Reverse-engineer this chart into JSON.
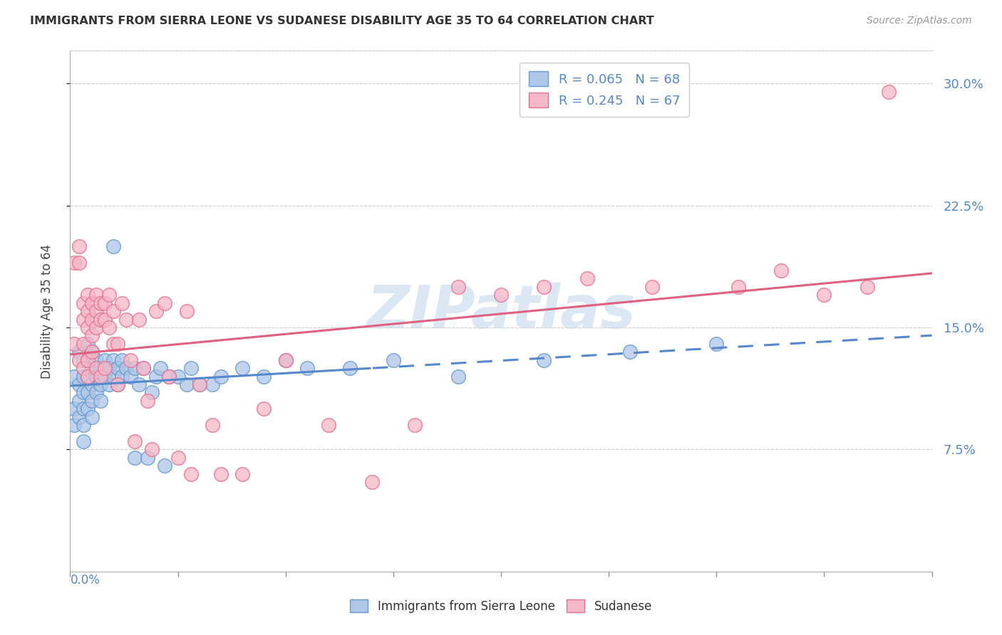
{
  "title": "IMMIGRANTS FROM SIERRA LEONE VS SUDANESE DISABILITY AGE 35 TO 64 CORRELATION CHART",
  "source": "Source: ZipAtlas.com",
  "ylabel": "Disability Age 35 to 64",
  "ylabel_ticks": [
    "7.5%",
    "15.0%",
    "22.5%",
    "30.0%"
  ],
  "ylabel_tick_vals": [
    0.075,
    0.15,
    0.225,
    0.3
  ],
  "xlim": [
    0.0,
    0.2
  ],
  "ylim": [
    0.0,
    0.32
  ],
  "legend_label1": "R = 0.065   N = 68",
  "legend_label2": "R = 0.245   N = 67",
  "legend_label1_bottom": "Immigrants from Sierra Leone",
  "legend_label2_bottom": "Sudanese",
  "sierra_leone_color": "#aec6e8",
  "sudanese_color": "#f4b8c8",
  "sierra_leone_edge": "#6699cc",
  "sudanese_edge": "#e87090",
  "sierra_leone_line": "#5588cc",
  "sudanese_line": "#e06080",
  "watermark": "ZIPatlas",
  "watermark_color": "#c5d8ee",
  "sl_line_solid_end": 0.07,
  "sierra_leone_x": [
    0.001,
    0.001,
    0.001,
    0.002,
    0.002,
    0.002,
    0.002,
    0.003,
    0.003,
    0.003,
    0.003,
    0.003,
    0.003,
    0.004,
    0.004,
    0.004,
    0.004,
    0.004,
    0.005,
    0.005,
    0.005,
    0.005,
    0.005,
    0.006,
    0.006,
    0.006,
    0.007,
    0.007,
    0.007,
    0.008,
    0.008,
    0.009,
    0.009,
    0.01,
    0.01,
    0.01,
    0.011,
    0.011,
    0.012,
    0.012,
    0.013,
    0.014,
    0.015,
    0.015,
    0.016,
    0.017,
    0.018,
    0.019,
    0.02,
    0.021,
    0.022,
    0.023,
    0.025,
    0.027,
    0.028,
    0.03,
    0.033,
    0.035,
    0.04,
    0.045,
    0.05,
    0.055,
    0.065,
    0.075,
    0.09,
    0.11,
    0.13,
    0.15
  ],
  "sierra_leone_y": [
    0.12,
    0.1,
    0.09,
    0.135,
    0.115,
    0.105,
    0.095,
    0.13,
    0.12,
    0.11,
    0.1,
    0.09,
    0.08,
    0.14,
    0.13,
    0.12,
    0.11,
    0.1,
    0.135,
    0.125,
    0.115,
    0.105,
    0.095,
    0.13,
    0.12,
    0.11,
    0.125,
    0.115,
    0.105,
    0.13,
    0.12,
    0.125,
    0.115,
    0.2,
    0.13,
    0.12,
    0.125,
    0.115,
    0.13,
    0.12,
    0.125,
    0.12,
    0.07,
    0.125,
    0.115,
    0.125,
    0.07,
    0.11,
    0.12,
    0.125,
    0.065,
    0.12,
    0.12,
    0.115,
    0.125,
    0.115,
    0.115,
    0.12,
    0.125,
    0.12,
    0.13,
    0.125,
    0.125,
    0.13,
    0.12,
    0.13,
    0.135,
    0.14
  ],
  "sudanese_x": [
    0.001,
    0.001,
    0.002,
    0.002,
    0.002,
    0.003,
    0.003,
    0.003,
    0.003,
    0.004,
    0.004,
    0.004,
    0.004,
    0.004,
    0.005,
    0.005,
    0.005,
    0.005,
    0.006,
    0.006,
    0.006,
    0.006,
    0.007,
    0.007,
    0.007,
    0.008,
    0.008,
    0.008,
    0.009,
    0.009,
    0.01,
    0.01,
    0.011,
    0.011,
    0.012,
    0.013,
    0.014,
    0.015,
    0.016,
    0.017,
    0.018,
    0.019,
    0.02,
    0.022,
    0.023,
    0.025,
    0.027,
    0.028,
    0.03,
    0.033,
    0.035,
    0.04,
    0.045,
    0.05,
    0.06,
    0.07,
    0.08,
    0.09,
    0.1,
    0.11,
    0.12,
    0.135,
    0.155,
    0.165,
    0.175,
    0.185,
    0.19
  ],
  "sudanese_y": [
    0.19,
    0.14,
    0.2,
    0.19,
    0.13,
    0.165,
    0.155,
    0.14,
    0.125,
    0.17,
    0.16,
    0.15,
    0.13,
    0.12,
    0.165,
    0.155,
    0.145,
    0.135,
    0.17,
    0.16,
    0.15,
    0.125,
    0.165,
    0.155,
    0.12,
    0.165,
    0.155,
    0.125,
    0.17,
    0.15,
    0.16,
    0.14,
    0.115,
    0.14,
    0.165,
    0.155,
    0.13,
    0.08,
    0.155,
    0.125,
    0.105,
    0.075,
    0.16,
    0.165,
    0.12,
    0.07,
    0.16,
    0.06,
    0.115,
    0.09,
    0.06,
    0.06,
    0.1,
    0.13,
    0.09,
    0.055,
    0.09,
    0.175,
    0.17,
    0.175,
    0.18,
    0.175,
    0.175,
    0.185,
    0.17,
    0.175,
    0.295
  ]
}
